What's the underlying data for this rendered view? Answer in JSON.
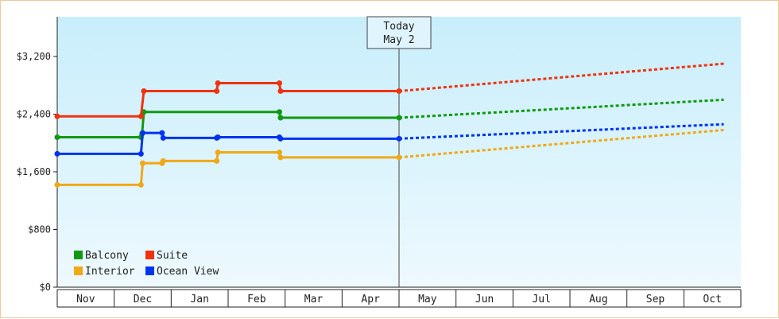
{
  "chart_data": {
    "type": "line",
    "title": "",
    "xlabel": "",
    "ylabel": "",
    "ylim": [
      0,
      3200
    ],
    "y_ticks": [
      {
        "value": 0,
        "label": "$0"
      },
      {
        "value": 800,
        "label": "$800"
      },
      {
        "value": 1600,
        "label": "$1,600"
      },
      {
        "value": 2400,
        "label": "$2,400"
      },
      {
        "value": 3200,
        "label": "$3,200"
      }
    ],
    "x_months": [
      "Nov",
      "Dec",
      "Jan",
      "Feb",
      "Mar",
      "Apr",
      "May",
      "Jun",
      "Jul",
      "Aug",
      "Sep",
      "Oct"
    ],
    "today": {
      "line1": "Today",
      "line2": "May 2",
      "x": 6.0
    },
    "legend": {
      "placement": "bottom-left"
    },
    "series": [
      {
        "name": "Balcony",
        "color": "#119911",
        "points": [
          [
            0.0,
            2080
          ],
          [
            1.47,
            2080
          ],
          [
            1.49,
            2130
          ],
          [
            1.52,
            2430
          ],
          [
            3.9,
            2430
          ],
          [
            3.92,
            2350
          ],
          [
            6.0,
            2350
          ]
        ],
        "forecast": [
          [
            6.0,
            2350
          ],
          [
            11.7,
            2600
          ]
        ]
      },
      {
        "name": "Suite",
        "color": "#ee3311",
        "points": [
          [
            0.0,
            2370
          ],
          [
            1.47,
            2370
          ],
          [
            1.52,
            2720
          ],
          [
            2.8,
            2720
          ],
          [
            2.82,
            2830
          ],
          [
            3.9,
            2830
          ],
          [
            3.92,
            2720
          ],
          [
            6.0,
            2720
          ]
        ],
        "forecast": [
          [
            6.0,
            2720
          ],
          [
            11.7,
            3100
          ]
        ]
      },
      {
        "name": "Interior",
        "color": "#f0a818",
        "points": [
          [
            0.0,
            1420
          ],
          [
            1.47,
            1420
          ],
          [
            1.5,
            1720
          ],
          [
            1.84,
            1720
          ],
          [
            1.86,
            1750
          ],
          [
            2.8,
            1750
          ],
          [
            2.82,
            1870
          ],
          [
            3.9,
            1870
          ],
          [
            3.92,
            1800
          ],
          [
            6.0,
            1800
          ]
        ],
        "forecast": [
          [
            6.0,
            1800
          ],
          [
            11.7,
            2180
          ]
        ]
      },
      {
        "name": "Ocean View",
        "color": "#0033ee",
        "points": [
          [
            0.0,
            1850
          ],
          [
            1.47,
            1850
          ],
          [
            1.5,
            2140
          ],
          [
            1.84,
            2140
          ],
          [
            1.86,
            2070
          ],
          [
            2.8,
            2070
          ],
          [
            2.82,
            2080
          ],
          [
            3.9,
            2080
          ],
          [
            3.92,
            2060
          ],
          [
            6.0,
            2060
          ]
        ],
        "forecast": [
          [
            6.0,
            2060
          ],
          [
            11.7,
            2260
          ]
        ]
      }
    ]
  }
}
